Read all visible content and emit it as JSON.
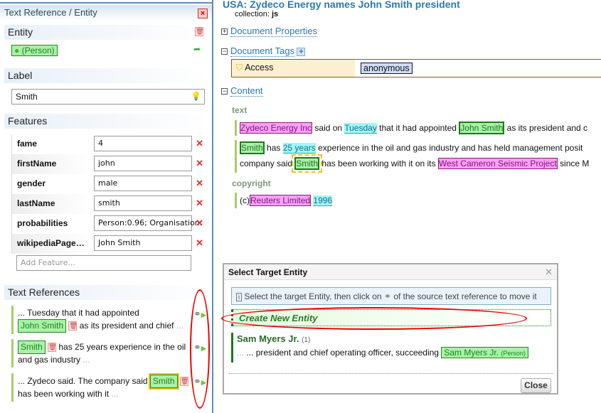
{
  "left_panel": {
    "title": "Text Reference / Entity",
    "entity": {
      "heading": "Entity",
      "type": "(Person)"
    },
    "label": {
      "heading": "Label",
      "value": "Smith"
    },
    "features": {
      "heading": "Features",
      "items": [
        {
          "key": "fame",
          "value": "4"
        },
        {
          "key": "firstName",
          "value": "john"
        },
        {
          "key": "gender",
          "value": "male"
        },
        {
          "key": "lastName",
          "value": "smith"
        },
        {
          "key": "probabilities",
          "value": "Person:0.96; Organisation:"
        },
        {
          "key": "wikipediaPage…",
          "value": "John Smith"
        }
      ],
      "add_placeholder": "Add Feature..."
    },
    "text_refs": {
      "heading": "Text References",
      "items": [
        {
          "pre": "... Tuesday that it had appointed",
          "mention": "John Smith",
          "post": "as its president and chief",
          "ell": "..."
        },
        {
          "pre": "",
          "mention": "Smith",
          "post": "has 25 years experience in the oil and gas industry",
          "ell": "..."
        },
        {
          "pre": "... Zydeco said. The company said",
          "mention": "Smith",
          "post": "has been working with it",
          "ell": "..."
        }
      ]
    }
  },
  "document": {
    "title": "USA: Zydeco Energy names John Smith president",
    "collection_label": "collection:",
    "collection": "js",
    "properties_link": "Document Properties",
    "tags_link": "Document Tags",
    "tag_key": "Access",
    "tag_value": "anonymous",
    "content_link": "Content",
    "text_heading": "text",
    "copyright_heading": "copyright",
    "p1": [
      "Zydeco Energy Inc",
      "said on",
      "Tuesday",
      "that it had appointed",
      "John Smith",
      "as its president and c"
    ],
    "p2a": [
      "Smith",
      "has",
      "25 years",
      "experience in the oil and gas industry and has held management posit"
    ],
    "p2b": [
      "company said",
      "Smith",
      "has been working with it on its",
      "West Cameron Seismic Project",
      "since M"
    ],
    "p3": [
      "(c)",
      "Reuters Limited",
      "1996"
    ]
  },
  "dialog": {
    "title": "Select Target Entity",
    "info_pre": "Select the target Entity, then click on",
    "info_post": "of the source text reference to move it",
    "create": "Create New Entity",
    "entity_name": "Sam Myers Jr.",
    "entity_count": "(1)",
    "snippet": "... president and chief operating officer, succeeding",
    "mention": "Sam Myers Jr.",
    "mention_type": "(Person)",
    "close": "Close"
  }
}
